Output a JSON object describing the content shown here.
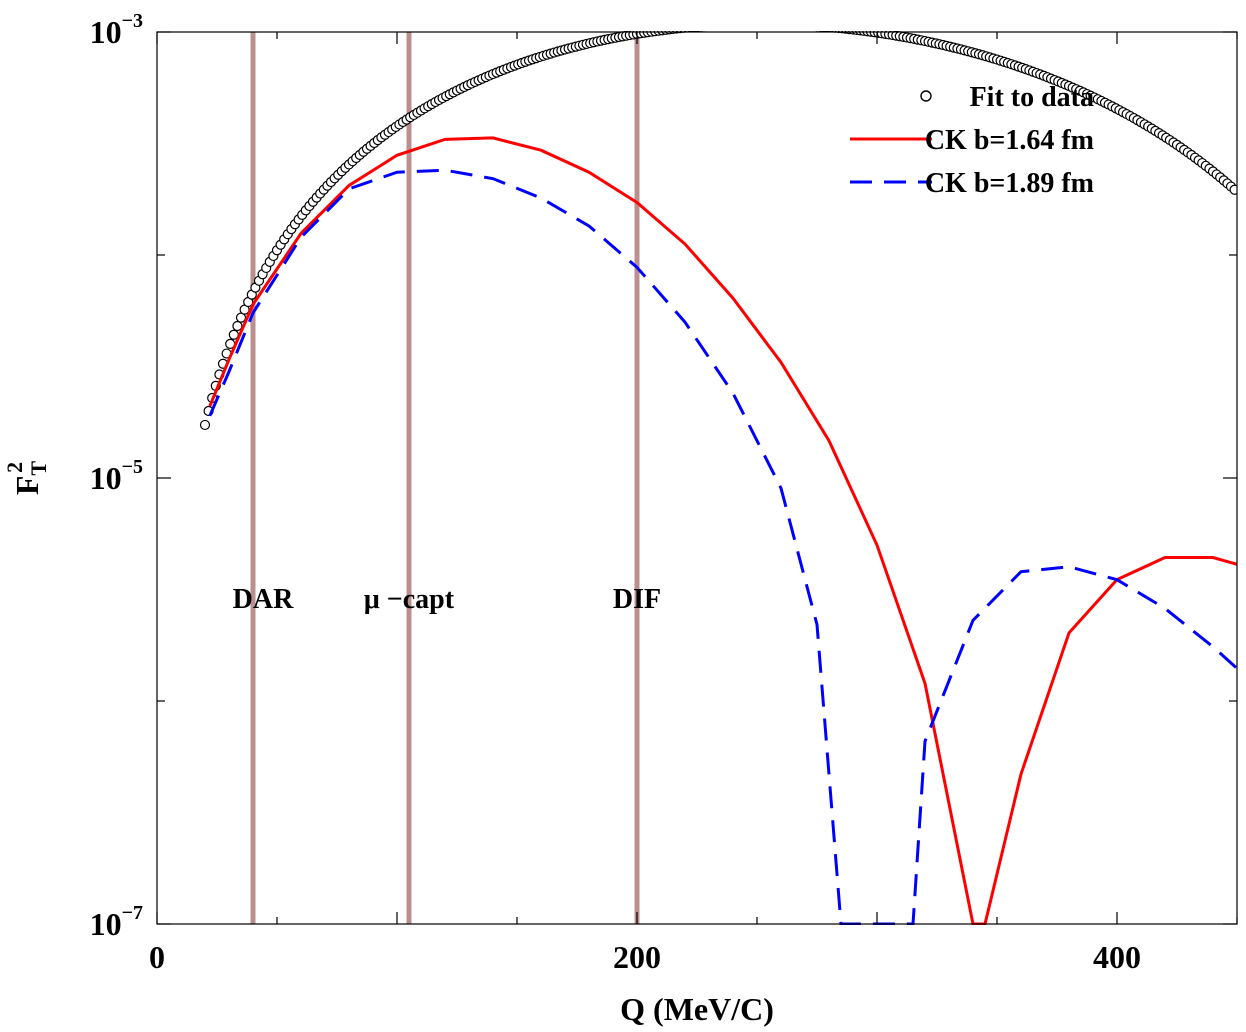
{
  "chart_data": {
    "type": "line",
    "title": "",
    "xlabel": "Q (MeV/C)",
    "ylabel": {
      "base": "F",
      "sub": "T",
      "sup": "2"
    },
    "xlim": [
      0,
      450
    ],
    "ylim": [
      1e-07,
      0.001
    ],
    "yscale": "log",
    "grid": false,
    "legend_position": "top-right",
    "x_ticks": [
      {
        "value": 0,
        "label": "0"
      },
      {
        "value": 200,
        "label": "200"
      },
      {
        "value": 400,
        "label": "400"
      }
    ],
    "y_ticks": [
      {
        "value": 1e-07,
        "base": "10",
        "exp": "−7"
      },
      {
        "value": 1e-05,
        "base": "10",
        "exp": "−5"
      },
      {
        "value": 0.001,
        "base": "10",
        "exp": "−3"
      }
    ],
    "reference_lines": [
      {
        "x": 40,
        "label": "DAR",
        "label_y": 2.9e-06,
        "color": "#bc8f8f"
      },
      {
        "x": 105,
        "label": "μ −capt",
        "label_y": 2.9e-06,
        "color": "#bc8f8f"
      },
      {
        "x": 200,
        "label": "DIF",
        "label_y": 2.9e-06,
        "color": "#bc8f8f"
      }
    ],
    "series": [
      {
        "name": "Fit to data",
        "style": "circles",
        "color": "#000000",
        "model": {
          "q_min": 20,
          "q_max": 450,
          "step": 1.5,
          "r": 1.635,
          "n": 0.0057
        }
      },
      {
        "name": "CK b=1.64 fm",
        "style": "solid",
        "color": "#ff0000",
        "x": [
          22,
          30,
          40,
          60,
          80,
          100,
          120,
          140,
          160,
          180,
          200,
          220,
          240,
          260,
          280,
          300,
          320,
          340,
          345,
          360,
          380,
          400,
          420,
          440,
          450
        ],
        "y": [
          2.1e-05,
          3.4e-05,
          6e-05,
          0.000125,
          0.000205,
          0.00028,
          0.00033,
          0.000335,
          0.000295,
          0.000235,
          0.000172,
          0.000112,
          6.4e-05,
          3.3e-05,
          1.47e-05,
          5e-06,
          1.2e-06,
          1e-07,
          1e-07,
          4.7e-07,
          2.02e-06,
          3.5e-06,
          4.4e-06,
          4.4e-06,
          4.1e-06
        ]
      },
      {
        "name": "CK b=1.89 fm",
        "style": "dashed",
        "color": "#0000ff",
        "x": [
          22,
          30,
          40,
          60,
          80,
          100,
          120,
          140,
          160,
          180,
          200,
          220,
          240,
          260,
          275,
          285,
          315,
          320,
          340,
          360,
          380,
          400,
          420,
          440,
          450
        ],
        "y": [
          1.9e-05,
          3e-05,
          5.5e-05,
          0.00012,
          0.000198,
          0.000235,
          0.00024,
          0.00022,
          0.00018,
          0.000135,
          8.8e-05,
          5e-05,
          2.4e-05,
          9e-06,
          2.2e-06,
          1e-07,
          1e-07,
          6.6e-07,
          2.3e-06,
          3.8e-06,
          4e-06,
          3.5e-06,
          2.6e-06,
          1.75e-06,
          1.4e-06
        ]
      }
    ]
  }
}
